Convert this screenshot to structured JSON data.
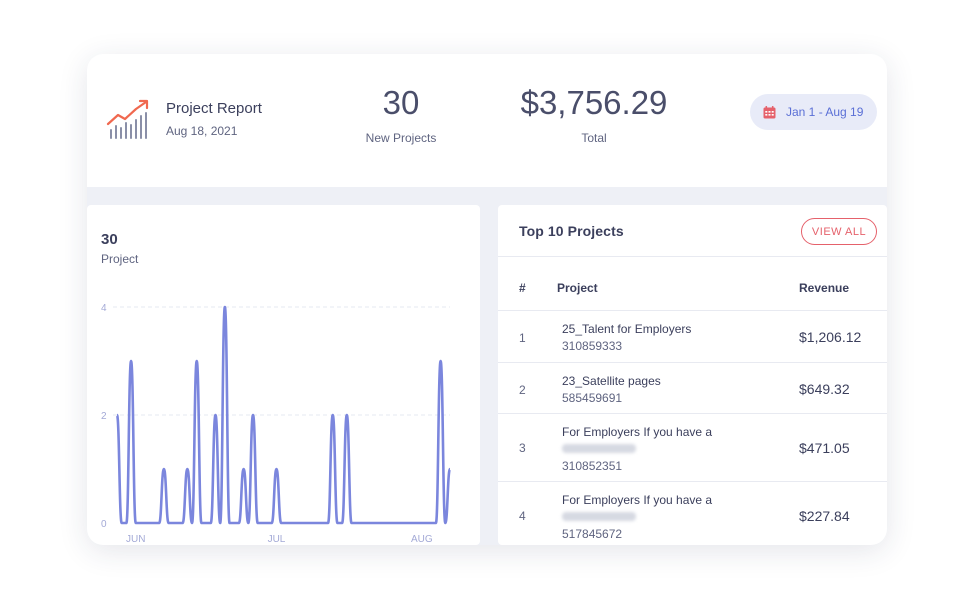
{
  "header": {
    "report_title": "Project Report",
    "report_date": "Aug 18, 2021",
    "stat_projects_value": "30",
    "stat_projects_label": "New Projects",
    "stat_total_value": "$3,756.29",
    "stat_total_label": "Total",
    "date_range": "Jan 1 - Aug 19",
    "icons": {
      "report": "trend-chart-icon",
      "date": "calendar-icon"
    },
    "accent_color": "#5a6fd6",
    "icon_trend_color": "#f0684f",
    "calendar_color": "#e5616b"
  },
  "chart_panel": {
    "count": "30",
    "label": "Project"
  },
  "chart_data": {
    "type": "line",
    "title": "",
    "xlabel": "",
    "ylabel": "",
    "x_tick_labels": [
      "JUN",
      "JUL",
      "AUG"
    ],
    "y_ticks": [
      "0",
      "2",
      "4"
    ],
    "ylim": [
      0,
      4
    ],
    "grid": true,
    "line_color": "#7b86dd",
    "series": [
      {
        "values": [
          2,
          0,
          0,
          3,
          0,
          0,
          0,
          0,
          0,
          0,
          1,
          0,
          0,
          0,
          0,
          1,
          0,
          3,
          0,
          0,
          0,
          2,
          0,
          4,
          0,
          0,
          0,
          1,
          0,
          2,
          0,
          0,
          0,
          0,
          1,
          0,
          0,
          0,
          0,
          0,
          0,
          0,
          0,
          0,
          0,
          0,
          2,
          0,
          0,
          2,
          0,
          0,
          0,
          0,
          0,
          0,
          0,
          0,
          0,
          0,
          0,
          0,
          0,
          0,
          0,
          0,
          0,
          0,
          0,
          3,
          0,
          1
        ]
      }
    ],
    "x_label_indices": [
      4,
      34,
      65
    ]
  },
  "table_panel": {
    "title": "Top 10 Projects",
    "view_all": "VIEW ALL",
    "columns": [
      "#",
      "Project",
      "Revenue"
    ],
    "rows": [
      {
        "num": "1",
        "name": "25_Talent for Employers",
        "id": "310859333",
        "revenue": "$1,206.12",
        "blurred": false
      },
      {
        "num": "2",
        "name": "23_Satellite pages",
        "id": "585459691",
        "revenue": "$649.32",
        "blurred": false
      },
      {
        "num": "3",
        "name": "For Employers If you have a",
        "id": "310852351",
        "revenue": "$471.05",
        "blurred": true
      },
      {
        "num": "4",
        "name": "For Employers If you have a",
        "id": "517845672",
        "revenue": "$227.84",
        "blurred": true
      }
    ]
  }
}
